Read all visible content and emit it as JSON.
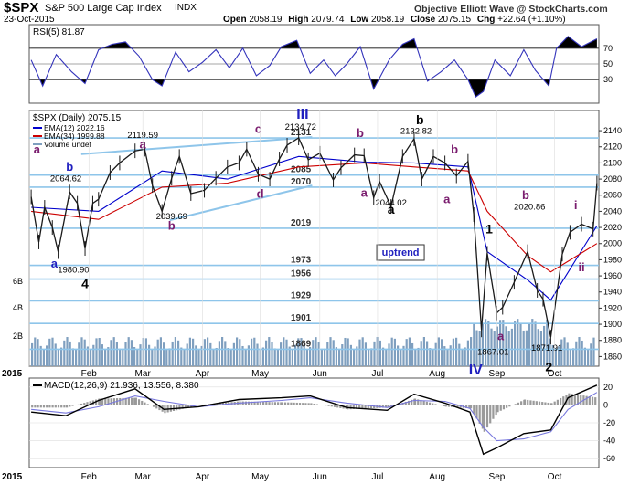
{
  "header": {
    "symbol": "$SPX",
    "name": "S&P 500 Large Cap Index",
    "exchange": "INDX",
    "date": "23-Oct-2015",
    "ohlc": {
      "open_label": "Open",
      "open": "2058.19",
      "high_label": "High",
      "high": "2079.74",
      "low_label": "Low",
      "low": "2058.19",
      "close_label": "Close",
      "close": "2075.15",
      "chg_label": "Chg",
      "chg": "+22.64 (+1.10%)"
    },
    "source": "Objective Elliott Wave @ StockCharts.com"
  },
  "colors": {
    "price_line": "#1a1a1a",
    "ema12": "#0000cc",
    "ema34": "#cc0000",
    "volume": "#7f9fbf",
    "horizontal_level": "#8ec5ea",
    "rsi_line": "#3333bb",
    "macd_line": "#000000",
    "signal_line": "#7777dd",
    "histogram": "#9a9a9a",
    "wave_label_blue": "#1f1fbf",
    "wave_label_purple": "#7a1c6e",
    "wave_label_black": "#000000"
  },
  "chart_data": [
    {
      "type": "line",
      "panel": "rsi",
      "title": "RSI(5) 81.87",
      "ylim": [
        0,
        100
      ],
      "levels": [
        70,
        50,
        30
      ],
      "yticks": [
        "70",
        "50",
        "30"
      ],
      "series": [
        {
          "name": "RSI(5)",
          "x": [
            "2015-01-02",
            "2015-01-08",
            "2015-01-15",
            "2015-01-23",
            "2015-01-30",
            "2015-02-06",
            "2015-02-13",
            "2015-02-20",
            "2015-02-27",
            "2015-03-06",
            "2015-03-11",
            "2015-03-18",
            "2015-03-25",
            "2015-04-01",
            "2015-04-08",
            "2015-04-15",
            "2015-04-22",
            "2015-04-29",
            "2015-05-06",
            "2015-05-12",
            "2015-05-20",
            "2015-05-27",
            "2015-06-03",
            "2015-06-09",
            "2015-06-15",
            "2015-06-22",
            "2015-06-29",
            "2015-07-07",
            "2015-07-14",
            "2015-07-20",
            "2015-07-27",
            "2015-08-03",
            "2015-08-10",
            "2015-08-17",
            "2015-08-21",
            "2015-08-25",
            "2015-08-31",
            "2015-09-08",
            "2015-09-15",
            "2015-09-21",
            "2015-09-28",
            "2015-10-02",
            "2015-10-08",
            "2015-10-15",
            "2015-10-23"
          ],
          "values": [
            55,
            22,
            62,
            40,
            25,
            68,
            75,
            78,
            60,
            30,
            22,
            65,
            40,
            52,
            68,
            45,
            70,
            35,
            48,
            72,
            80,
            38,
            55,
            35,
            50,
            72,
            18,
            55,
            75,
            82,
            28,
            40,
            55,
            30,
            8,
            15,
            55,
            35,
            68,
            42,
            22,
            70,
            85,
            72,
            82
          ]
        }
      ]
    },
    {
      "type": "line",
      "panel": "price",
      "title": "$SPX (Daily) 2075.15",
      "x_ticks": [
        "2015",
        "Feb",
        "Mar",
        "Apr",
        "May",
        "Jun",
        "Jul",
        "Aug",
        "Sep",
        "Oct"
      ],
      "ylim": [
        1848,
        2165
      ],
      "yticks": [
        1860,
        1880,
        1900,
        1920,
        1940,
        1960,
        1980,
        2000,
        2020,
        2040,
        2060,
        2080,
        2100,
        2120,
        2140
      ],
      "legend": [
        "EMA(12) 2022.16",
        "EMA(34) 1999.88",
        "Volume undef"
      ],
      "volume_axis": [
        "6B",
        "4B",
        "2B"
      ],
      "series": [
        {
          "name": "$SPX",
          "x": [
            "2015-01-02",
            "2015-01-06",
            "2015-01-09",
            "2015-01-13",
            "2015-01-16",
            "2015-01-22",
            "2015-01-26",
            "2015-01-30",
            "2015-02-03",
            "2015-02-06",
            "2015-02-12",
            "2015-02-17",
            "2015-02-25",
            "2015-03-02",
            "2015-03-06",
            "2015-03-11",
            "2015-03-16",
            "2015-03-20",
            "2015-03-26",
            "2015-04-02",
            "2015-04-08",
            "2015-04-14",
            "2015-04-20",
            "2015-04-24",
            "2015-04-30",
            "2015-05-06",
            "2015-05-11",
            "2015-05-15",
            "2015-05-21",
            "2015-05-26",
            "2015-06-01",
            "2015-06-08",
            "2015-06-12",
            "2015-06-19",
            "2015-06-24",
            "2015-06-29",
            "2015-07-02",
            "2015-07-08",
            "2015-07-14",
            "2015-07-20",
            "2015-07-24",
            "2015-07-30",
            "2015-08-05",
            "2015-08-11",
            "2015-08-17",
            "2015-08-20",
            "2015-08-24",
            "2015-08-27",
            "2015-09-01",
            "2015-09-04",
            "2015-09-10",
            "2015-09-17",
            "2015-09-22",
            "2015-09-25",
            "2015-09-29",
            "2015-10-05",
            "2015-10-09",
            "2015-10-15",
            "2015-10-21",
            "2015-10-23"
          ],
          "values": [
            2058,
            2002,
            2045,
            2020,
            1990,
            2064,
            2050,
            1994,
            2050,
            2055,
            2088,
            2100,
            2115,
            2117,
            2072,
            2040,
            2081,
            2108,
            2062,
            2066,
            2081,
            2095,
            2100,
            2117,
            2086,
            2080,
            2105,
            2122,
            2131,
            2104,
            2112,
            2079,
            2094,
            2110,
            2109,
            2057,
            2077,
            2046,
            2108,
            2130,
            2080,
            2108,
            2100,
            2084,
            2102,
            2036,
            1893,
            1988,
            1914,
            1921,
            1952,
            1990,
            1942,
            1931,
            1884,
            1987,
            2014,
            2024,
            2018,
            2075
          ]
        },
        {
          "name": "EMA(12)",
          "x": [
            "2015-01-02",
            "2015-02-06",
            "2015-03-11",
            "2015-04-14",
            "2015-05-21",
            "2015-06-24",
            "2015-07-20",
            "2015-08-17",
            "2015-08-27",
            "2015-09-17",
            "2015-09-29",
            "2015-10-23"
          ],
          "values": [
            2045,
            2040,
            2090,
            2080,
            2108,
            2101,
            2100,
            2095,
            1990,
            1955,
            1930,
            2022
          ]
        },
        {
          "name": "EMA(34)",
          "x": [
            "2015-01-02",
            "2015-02-06",
            "2015-03-11",
            "2015-04-14",
            "2015-05-21",
            "2015-06-24",
            "2015-07-20",
            "2015-08-17",
            "2015-08-27",
            "2015-09-17",
            "2015-09-29",
            "2015-10-23"
          ],
          "values": [
            2040,
            2030,
            2070,
            2075,
            2095,
            2100,
            2095,
            2090,
            2040,
            1985,
            1965,
            2000
          ]
        }
      ],
      "levels": [
        2131,
        2085,
        2070,
        2019,
        1973,
        1956,
        1929,
        1901,
        1869
      ],
      "level_labels": [
        "2131",
        "2085",
        "2070",
        "2019",
        "1973",
        "1956",
        "1929",
        "1901",
        "1869"
      ],
      "annotations": [
        {
          "text": "a",
          "x": "2015-01-05",
          "y": 2112,
          "color": "wave_label_purple"
        },
        {
          "text": "b",
          "x": "2015-01-22",
          "y": 2090,
          "color": "wave_label_blue"
        },
        {
          "text": "2064.62",
          "x": "2015-01-20",
          "y": 2077,
          "color": "wave_label_black"
        },
        {
          "text": "a",
          "x": "2015-01-14",
          "y": 1970,
          "color": "wave_label_blue"
        },
        {
          "text": "1980.90",
          "x": "2015-01-24",
          "y": 1964,
          "color": "wave_label_black"
        },
        {
          "text": "4",
          "x": "2015-01-30",
          "y": 1945,
          "color": "wave_label_black"
        },
        {
          "text": "a",
          "x": "2015-03-01",
          "y": 2118,
          "color": "wave_label_purple"
        },
        {
          "text": "2119.59",
          "x": "2015-03-01",
          "y": 2131,
          "color": "wave_label_black"
        },
        {
          "text": "2039.69",
          "x": "2015-03-16",
          "y": 2030,
          "color": "wave_label_black"
        },
        {
          "text": "b",
          "x": "2015-03-16",
          "y": 2017,
          "color": "wave_label_purple"
        },
        {
          "text": "c",
          "x": "2015-04-30",
          "y": 2137,
          "color": "wave_label_purple"
        },
        {
          "text": "III",
          "x": "2015-05-23",
          "y": 2155,
          "color": "wave_label_blue"
        },
        {
          "text": "2134.72",
          "x": "2015-05-22",
          "y": 2141,
          "color": "wave_label_black"
        },
        {
          "text": "d",
          "x": "2015-05-01",
          "y": 2057,
          "color": "wave_label_purple"
        },
        {
          "text": "b",
          "x": "2015-06-22",
          "y": 2132,
          "color": "wave_label_purple"
        },
        {
          "text": "a",
          "x": "2015-06-24",
          "y": 2058,
          "color": "wave_label_purple"
        },
        {
          "text": "b",
          "x": "2015-07-23",
          "y": 2148,
          "color": "wave_label_black"
        },
        {
          "text": "2132.82",
          "x": "2015-07-21",
          "y": 2136,
          "color": "wave_label_black"
        },
        {
          "text": "a",
          "x": "2015-07-08",
          "y": 2037,
          "color": "wave_label_black"
        },
        {
          "text": "2044.02",
          "x": "2015-07-08",
          "y": 2047,
          "color": "wave_label_black"
        },
        {
          "text": "b",
          "x": "2015-08-10",
          "y": 2112,
          "color": "wave_label_purple"
        },
        {
          "text": "a",
          "x": "2015-08-06",
          "y": 2050,
          "color": "wave_label_purple"
        },
        {
          "text": "1",
          "x": "2015-08-28",
          "y": 2013,
          "color": "wave_label_black"
        },
        {
          "text": "IV",
          "x": "2015-08-21",
          "y": 1838,
          "color": "wave_label_blue"
        },
        {
          "text": "1867.01",
          "x": "2015-08-30",
          "y": 1862,
          "color": "wave_label_black"
        },
        {
          "text": "a",
          "x": "2015-09-03",
          "y": 1880,
          "color": "wave_label_purple"
        },
        {
          "text": "b",
          "x": "2015-09-16",
          "y": 2055,
          "color": "wave_label_purple"
        },
        {
          "text": "2020.86",
          "x": "2015-09-18",
          "y": 2042,
          "color": "wave_label_black"
        },
        {
          "text": "2",
          "x": "2015-09-28",
          "y": 1842,
          "color": "wave_label_black"
        },
        {
          "text": "1871.91",
          "x": "2015-09-27",
          "y": 1867,
          "color": "wave_label_black"
        },
        {
          "text": "i",
          "x": "2015-10-12",
          "y": 2043,
          "color": "wave_label_purple"
        },
        {
          "text": "ii",
          "x": "2015-10-15",
          "y": 1966,
          "color": "wave_label_purple"
        }
      ],
      "boxed_label": "uptrend",
      "uptrend_box": {
        "x": "2015-07-02",
        "y": 1985
      }
    },
    {
      "type": "line",
      "panel": "macd",
      "title": "MACD(12,26,9) 21.936, 13.556, 8.380",
      "ylim": [
        -70,
        30
      ],
      "yticks": [
        20,
        0,
        -20,
        -40,
        -60
      ],
      "x_ticks": [
        "2015",
        "Feb",
        "Mar",
        "Apr",
        "May",
        "Jun",
        "Jul",
        "Aug",
        "Sep",
        "Oct"
      ],
      "series": [
        {
          "name": "MACD",
          "x": [
            "2015-01-02",
            "2015-01-20",
            "2015-02-06",
            "2015-02-25",
            "2015-03-12",
            "2015-03-30",
            "2015-04-20",
            "2015-05-12",
            "2015-05-27",
            "2015-06-15",
            "2015-07-06",
            "2015-07-20",
            "2015-08-05",
            "2015-08-18",
            "2015-08-25",
            "2015-09-01",
            "2015-09-15",
            "2015-09-29",
            "2015-10-08",
            "2015-10-23"
          ],
          "values": [
            -8,
            -12,
            5,
            18,
            -5,
            -2,
            6,
            8,
            10,
            -3,
            -6,
            12,
            2,
            -8,
            -55,
            -48,
            -32,
            -28,
            8,
            22
          ]
        },
        {
          "name": "Signal",
          "x": [
            "2015-01-02",
            "2015-01-20",
            "2015-02-06",
            "2015-02-25",
            "2015-03-12",
            "2015-03-30",
            "2015-04-20",
            "2015-05-12",
            "2015-05-27",
            "2015-06-15",
            "2015-07-06",
            "2015-07-20",
            "2015-08-05",
            "2015-08-18",
            "2015-08-25",
            "2015-09-01",
            "2015-09-15",
            "2015-09-29",
            "2015-10-08",
            "2015-10-23"
          ],
          "values": [
            -5,
            -9,
            -2,
            10,
            4,
            -2,
            2,
            5,
            8,
            2,
            -3,
            5,
            4,
            -4,
            -25,
            -40,
            -38,
            -30,
            -5,
            14
          ]
        }
      ]
    }
  ]
}
